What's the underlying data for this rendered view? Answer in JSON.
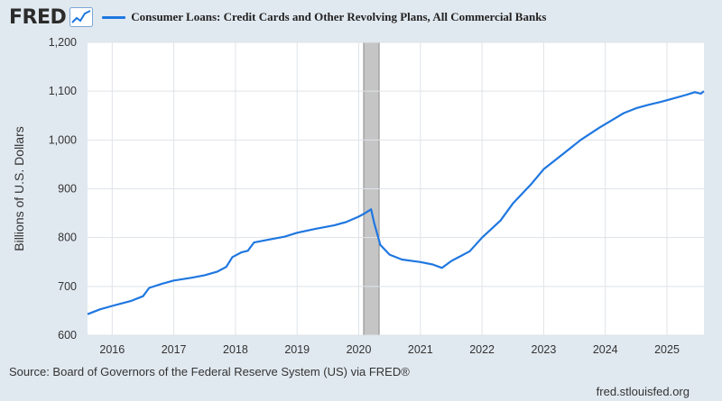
{
  "header": {
    "logo_text": "FRED",
    "series_label": "Consumer Loans: Credit Cards and Other Revolving Plans, All Commercial Banks"
  },
  "footer": {
    "source": "Source: Board of Governors of the Federal Reserve System (US) via FRED®",
    "site": "fred.stlouisfed.org"
  },
  "colors": {
    "line": "#1f77e0",
    "plot_bg": "#ffffff",
    "page_bg": "#e1e9f0",
    "recession": "#c5c5c5"
  },
  "chart_data": {
    "type": "line",
    "title": "",
    "xlabel": "",
    "ylabel": "Billions of U.S. Dollars",
    "xlim": [
      2015.6,
      2025.6
    ],
    "ylim": [
      600,
      1200
    ],
    "x_ticks": [
      {
        "value": 2016,
        "label": "2016"
      },
      {
        "value": 2017,
        "label": "2017"
      },
      {
        "value": 2018,
        "label": "2018"
      },
      {
        "value": 2019,
        "label": "2019"
      },
      {
        "value": 2020,
        "label": "2020"
      },
      {
        "value": 2021,
        "label": "2021"
      },
      {
        "value": 2022,
        "label": "2022"
      },
      {
        "value": 2023,
        "label": "2023"
      },
      {
        "value": 2024,
        "label": "2024"
      },
      {
        "value": 2025,
        "label": "2025"
      }
    ],
    "y_ticks": [
      {
        "value": 600,
        "label": "600"
      },
      {
        "value": 700,
        "label": "700"
      },
      {
        "value": 800,
        "label": "800"
      },
      {
        "value": 900,
        "label": "900"
      },
      {
        "value": 1000,
        "label": "1,000"
      },
      {
        "value": 1100,
        "label": "1,100"
      },
      {
        "value": 1200,
        "label": "1,200"
      }
    ],
    "grid": true,
    "recession_bands": [
      [
        2020.08,
        2020.33
      ]
    ],
    "series": [
      {
        "name": "Consumer Loans: Credit Cards and Other Revolving Plans, All Commercial Banks",
        "x": [
          2015.6,
          2015.8,
          2016.0,
          2016.3,
          2016.5,
          2016.6,
          2016.8,
          2017.0,
          2017.3,
          2017.5,
          2017.7,
          2017.85,
          2017.95,
          2018.1,
          2018.2,
          2018.3,
          2018.5,
          2018.8,
          2019.0,
          2019.3,
          2019.6,
          2019.8,
          2020.0,
          2020.1,
          2020.2,
          2020.25,
          2020.35,
          2020.5,
          2020.7,
          2021.0,
          2021.2,
          2021.35,
          2021.5,
          2021.8,
          2022.0,
          2022.3,
          2022.5,
          2022.8,
          2023.0,
          2023.3,
          2023.6,
          2023.9,
          2024.1,
          2024.3,
          2024.5,
          2024.7,
          2024.9,
          2025.1,
          2025.3,
          2025.45,
          2025.55,
          2025.6
        ],
        "values": [
          643,
          653,
          660,
          670,
          680,
          697,
          705,
          712,
          718,
          723,
          730,
          740,
          760,
          770,
          773,
          790,
          795,
          802,
          810,
          818,
          825,
          832,
          843,
          850,
          858,
          830,
          785,
          765,
          755,
          750,
          745,
          738,
          752,
          772,
          800,
          835,
          870,
          910,
          940,
          970,
          1000,
          1025,
          1040,
          1055,
          1065,
          1072,
          1078,
          1085,
          1092,
          1098,
          1095,
          1100
        ]
      }
    ]
  }
}
